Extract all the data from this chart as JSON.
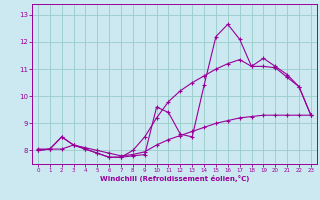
{
  "xlabel": "Windchill (Refroidissement éolien,°C)",
  "background_color": "#cce8f0",
  "grid_color": "#99cccc",
  "line_color": "#990099",
  "x_ticks": [
    0,
    1,
    2,
    3,
    4,
    5,
    6,
    7,
    8,
    9,
    10,
    11,
    12,
    13,
    14,
    15,
    16,
    17,
    18,
    19,
    20,
    21,
    22,
    23
  ],
  "y_ticks": [
    8,
    9,
    10,
    11,
    12,
    13
  ],
  "ylim": [
    7.5,
    13.4
  ],
  "xlim": [
    -0.5,
    23.5
  ],
  "series1_x": [
    0,
    1,
    2,
    3,
    4,
    5,
    6,
    7,
    8,
    9,
    10,
    11,
    12,
    13,
    14,
    15,
    16,
    17,
    18,
    19,
    20,
    21,
    22,
    23
  ],
  "series1_y": [
    8.0,
    8.05,
    8.5,
    8.2,
    8.05,
    7.9,
    7.75,
    7.75,
    7.8,
    7.85,
    9.6,
    9.4,
    8.6,
    8.5,
    10.4,
    12.2,
    12.65,
    12.1,
    11.1,
    11.4,
    11.1,
    10.8,
    10.35,
    9.3
  ],
  "series2_x": [
    0,
    1,
    2,
    3,
    4,
    5,
    6,
    7,
    8,
    9,
    10,
    11,
    12,
    13,
    14,
    15,
    16,
    17,
    18,
    19,
    20,
    21,
    22,
    23
  ],
  "series2_y": [
    8.0,
    8.05,
    8.5,
    8.2,
    8.05,
    7.9,
    7.75,
    7.75,
    8.0,
    8.5,
    9.2,
    9.8,
    10.2,
    10.5,
    10.75,
    11.0,
    11.2,
    11.35,
    11.1,
    11.1,
    11.05,
    10.7,
    10.35,
    9.3
  ],
  "series3_x": [
    0,
    1,
    2,
    3,
    4,
    5,
    6,
    7,
    8,
    9,
    10,
    11,
    12,
    13,
    14,
    15,
    16,
    17,
    18,
    19,
    20,
    21,
    22,
    23
  ],
  "series3_y": [
    8.05,
    8.05,
    8.05,
    8.2,
    8.1,
    8.0,
    7.9,
    7.8,
    7.85,
    7.95,
    8.2,
    8.4,
    8.55,
    8.7,
    8.85,
    9.0,
    9.1,
    9.2,
    9.25,
    9.3,
    9.3,
    9.3,
    9.3,
    9.3
  ]
}
